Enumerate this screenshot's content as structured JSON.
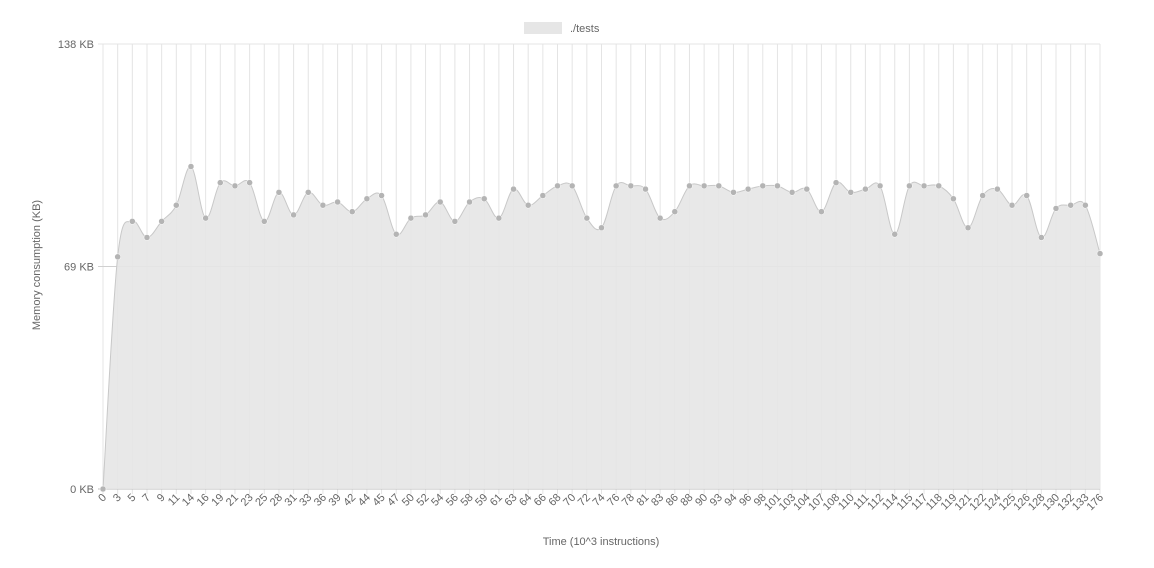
{
  "chart_data": {
    "type": "area",
    "legend": {
      "label": "./tests",
      "position": "top-center",
      "swatch_color": "#e6e6e6"
    },
    "xlabel": "Time (10^3 instructions)",
    "ylabel": "Memory consumption (KB)",
    "y_ticks": [
      {
        "value": 0,
        "label": "0 KB"
      },
      {
        "value": 69,
        "label": "69 KB"
      },
      {
        "value": 138,
        "label": "138 KB"
      }
    ],
    "ylim": [
      0,
      138
    ],
    "grid": true,
    "colors": {
      "fill": "#e6e6e6",
      "line": "#c8c8c8",
      "point": "#b4b4b4",
      "grid": "#e4e4e4",
      "zero_line": "#bbbbbb",
      "text": "#666666"
    },
    "categories": [
      "0",
      "3",
      "5",
      "7",
      "9",
      "11",
      "14",
      "16",
      "19",
      "21",
      "23",
      "25",
      "28",
      "31",
      "33",
      "36",
      "39",
      "42",
      "44",
      "45",
      "47",
      "50",
      "52",
      "54",
      "56",
      "58",
      "59",
      "61",
      "63",
      "64",
      "66",
      "68",
      "70",
      "72",
      "74",
      "76",
      "78",
      "81",
      "83",
      "86",
      "88",
      "90",
      "93",
      "94",
      "96",
      "98",
      "101",
      "103",
      "104",
      "107",
      "108",
      "110",
      "111",
      "112",
      "114",
      "115",
      "117",
      "118",
      "119",
      "121",
      "122",
      "124",
      "125",
      "126",
      "128",
      "130",
      "132",
      "133",
      "176"
    ],
    "values": [
      0,
      72,
      83,
      78,
      83,
      88,
      100,
      84,
      95,
      94,
      95,
      83,
      92,
      85,
      92,
      88,
      89,
      86,
      90,
      91,
      79,
      84,
      85,
      89,
      83,
      89,
      90,
      84,
      93,
      88,
      91,
      94,
      94,
      84,
      81,
      94,
      94,
      93,
      84,
      86,
      94,
      94,
      94,
      92,
      93,
      94,
      94,
      92,
      93,
      86,
      95,
      92,
      93,
      94,
      79,
      94,
      94,
      94,
      90,
      81,
      91,
      93,
      88,
      91,
      78,
      87,
      88,
      88,
      73
    ]
  }
}
